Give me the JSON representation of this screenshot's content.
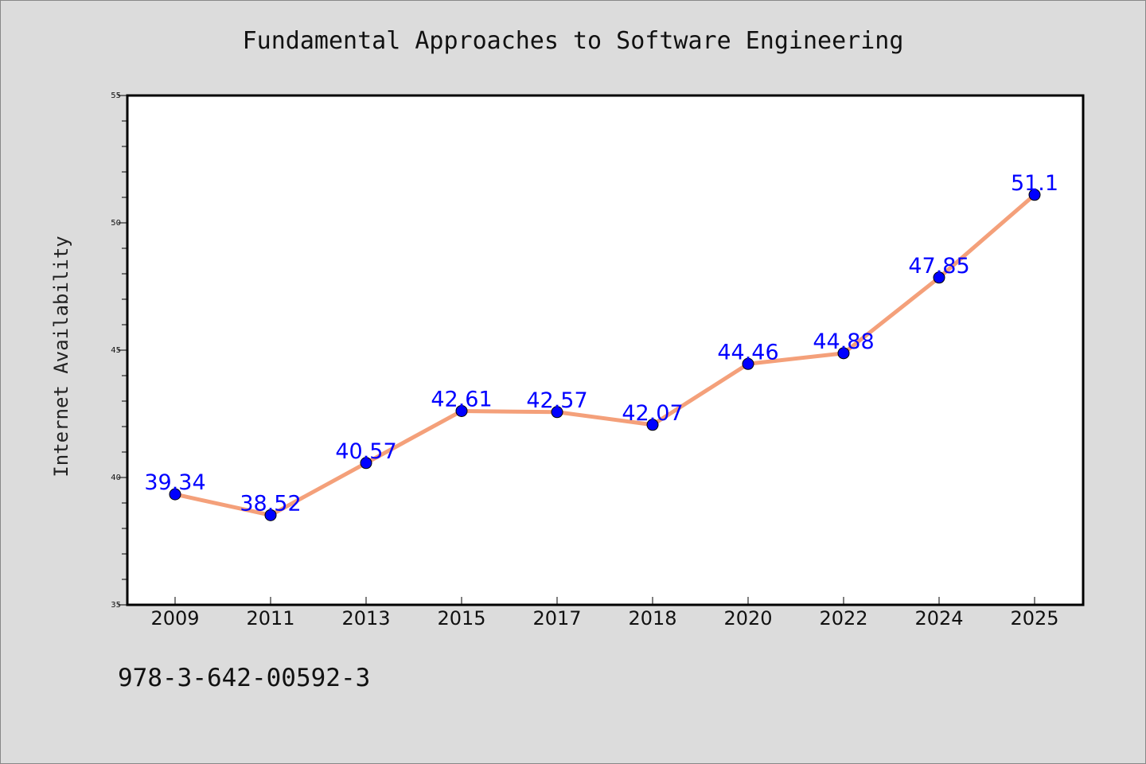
{
  "chart_data": {
    "type": "line",
    "title": "Fundamental Approaches to Software Engineering",
    "xlabel": "",
    "ylabel": "Internet Availability",
    "categories": [
      "2009",
      "2011",
      "2013",
      "2015",
      "2017",
      "2018",
      "2020",
      "2022",
      "2024",
      "2025"
    ],
    "series": [
      {
        "values": [
          39.34,
          38.52,
          40.57,
          42.61,
          42.57,
          42.07,
          44.46,
          44.88,
          47.85,
          51.1
        ],
        "labels": [
          "39.34",
          "38.52",
          "40.57",
          "42.61",
          "42.57",
          "42.07",
          "44.46",
          "44.88",
          "47.85",
          "51.1"
        ],
        "line_color": "#f4a07a",
        "marker_color": "#0000ff"
      }
    ],
    "ylim": [
      35,
      55
    ],
    "yticks": [
      "35",
      "40",
      "45",
      "50",
      "55"
    ],
    "grid": false,
    "legend": "none"
  },
  "footer": {
    "isbn": "978-3-642-00592-3"
  },
  "colors": {
    "background": "#dcdcdc",
    "plot_area": "#ffffff",
    "label_color": "#0000ff"
  }
}
